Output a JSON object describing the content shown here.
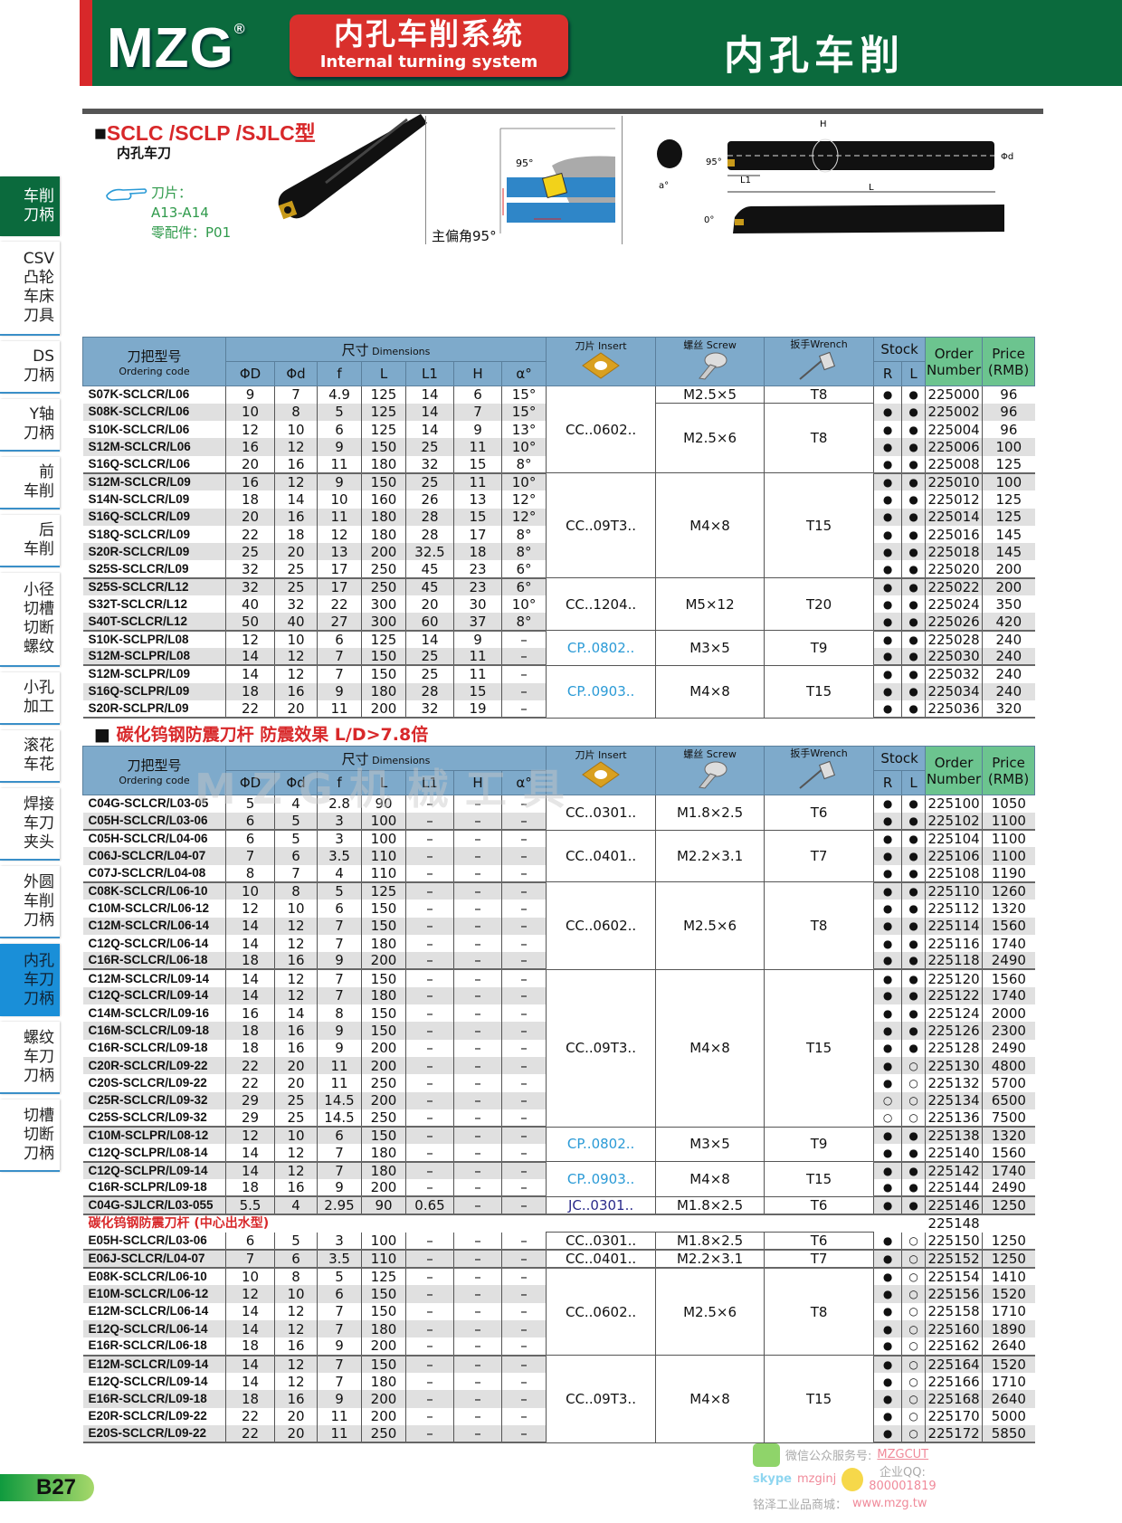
{
  "header": {
    "brand": "MZG",
    "registered": "®",
    "system_cn": "内孔车削系统",
    "system_en": "Internal turning system",
    "title": "内孔车削"
  },
  "sidebar": {
    "items": [
      {
        "lines": [
          "车削",
          "刀柄"
        ],
        "state": "green"
      },
      {
        "lines": [
          "CSV",
          "凸轮",
          "车床",
          "刀具"
        ]
      },
      {
        "lines": [
          "DS",
          "刀柄"
        ]
      },
      {
        "lines": [
          "Y轴",
          "刀柄"
        ]
      },
      {
        "lines": [
          "前",
          "车削"
        ]
      },
      {
        "lines": [
          "后",
          "车削"
        ]
      },
      {
        "lines": [
          "小径",
          "切槽",
          "切断",
          "螺纹"
        ]
      },
      {
        "lines": [
          "小孔",
          "加工"
        ]
      },
      {
        "lines": [
          "滚花",
          "车花"
        ]
      },
      {
        "lines": [
          "焊接",
          "车刀",
          "夹头"
        ]
      },
      {
        "lines": [
          "外圆",
          "车削",
          "刀柄"
        ]
      },
      {
        "lines": [
          "内孔",
          "车刀",
          "刀柄"
        ],
        "state": "active"
      },
      {
        "lines": [
          "螺纹",
          "车刀",
          "刀柄"
        ]
      },
      {
        "lines": [
          "切槽",
          "切断",
          "刀柄"
        ]
      }
    ]
  },
  "intro": {
    "bullet": "■",
    "title": "SCLC  /SCLP  /SJLC型",
    "subtitle": "内孔车刀",
    "insert_label": "刀片：",
    "insert_value": "A13-A14",
    "parts_label": "零配件：P01",
    "angle_label": "主偏角95°",
    "diagram_labels": {
      "angle": "95°",
      "H": "H",
      "d": "Φd",
      "L1": "L1",
      "L": "L",
      "a": "a°",
      "zero": "0°"
    }
  },
  "table_headers": {
    "code_cn": "刀把型号",
    "code_en": "Ordering code",
    "dims_cn": "尺寸",
    "dims_en": " Dimensions",
    "dims": [
      "ΦD",
      "Φd",
      "f",
      "L",
      "L1",
      "H",
      "α°"
    ],
    "insert": "刀片 Insert",
    "screw": "螺丝 Screw",
    "wrench": "扳手Wrench",
    "stock": "Stock",
    "stock_r": "R",
    "stock_l": "L",
    "order": "Order Number",
    "price": "Price (RMB)"
  },
  "icons": {
    "insert": "insert-icon",
    "screw": "screw-icon",
    "wrench": "wrench-icon",
    "hand": "pointing-hand-icon"
  },
  "colors": {
    "banner": "#0b6a3d",
    "red": "#d8282a",
    "header_blue": "#7eaacb",
    "header_green": "#6cc48f",
    "cp_insert": "#2a9ad6",
    "jc_insert": "#2a2a8a"
  },
  "table1": {
    "rows": [
      [
        "S07K-SCLCR/L06",
        "9",
        "7",
        "4.9",
        "125",
        "14",
        "6",
        "15°",
        "●",
        "●",
        "225000",
        "96"
      ],
      [
        "S08K-SCLCR/L06",
        "10",
        "8",
        "5",
        "125",
        "14",
        "7",
        "15°",
        "●",
        "●",
        "225002",
        "96"
      ],
      [
        "S10K-SCLCR/L06",
        "12",
        "10",
        "6",
        "125",
        "14",
        "9",
        "13°",
        "●",
        "●",
        "225004",
        "96"
      ],
      [
        "S12M-SCLCR/L06",
        "16",
        "12",
        "9",
        "150",
        "25",
        "11",
        "10°",
        "●",
        "●",
        "225006",
        "100"
      ],
      [
        "S16Q-SCLCR/L06",
        "20",
        "16",
        "11",
        "180",
        "32",
        "15",
        "8°",
        "●",
        "●",
        "225008",
        "125"
      ],
      [
        "S12M-SCLCR/L09",
        "16",
        "12",
        "9",
        "150",
        "25",
        "11",
        "10°",
        "●",
        "●",
        "225010",
        "100"
      ],
      [
        "S14N-SCLCR/L09",
        "18",
        "14",
        "10",
        "160",
        "26",
        "13",
        "12°",
        "●",
        "●",
        "225012",
        "125"
      ],
      [
        "S16Q-SCLCR/L09",
        "20",
        "16",
        "11",
        "180",
        "28",
        "15",
        "12°",
        "●",
        "●",
        "225014",
        "125"
      ],
      [
        "S18Q-SCLCR/L09",
        "22",
        "18",
        "12",
        "180",
        "28",
        "17",
        "8°",
        "●",
        "●",
        "225016",
        "145"
      ],
      [
        "S20R-SCLCR/L09",
        "25",
        "20",
        "13",
        "200",
        "32.5",
        "18",
        "8°",
        "●",
        "●",
        "225018",
        "145"
      ],
      [
        "S25S-SCLCR/L09",
        "32",
        "25",
        "17",
        "250",
        "45",
        "23",
        "6°",
        "●",
        "●",
        "225020",
        "200"
      ],
      [
        "S25S-SCLCR/L12",
        "32",
        "25",
        "17",
        "250",
        "45",
        "23",
        "6°",
        "●",
        "●",
        "225022",
        "200"
      ],
      [
        "S32T-SCLCR/L12",
        "40",
        "32",
        "22",
        "300",
        "20",
        "30",
        "10°",
        "●",
        "●",
        "225024",
        "350"
      ],
      [
        "S40T-SCLCR/L12",
        "50",
        "40",
        "27",
        "300",
        "60",
        "37",
        "8°",
        "●",
        "●",
        "225026",
        "420"
      ],
      [
        "S10K-SCLPR/L08",
        "12",
        "10",
        "6",
        "125",
        "14",
        "9",
        "–",
        "●",
        "●",
        "225028",
        "240"
      ],
      [
        "S12M-SCLPR/L08",
        "14",
        "12",
        "7",
        "150",
        "25",
        "11",
        "–",
        "●",
        "●",
        "225030",
        "240"
      ],
      [
        "S12M-SCLPR/L09",
        "14",
        "12",
        "7",
        "150",
        "25",
        "11",
        "–",
        "●",
        "●",
        "225032",
        "240"
      ],
      [
        "S16Q-SCLPR/L09",
        "18",
        "16",
        "9",
        "180",
        "28",
        "15",
        "–",
        "●",
        "●",
        "225034",
        "240"
      ],
      [
        "S20R-SCLPR/L09",
        "22",
        "20",
        "11",
        "200",
        "32",
        "19",
        "–",
        "●",
        "●",
        "225036",
        "320"
      ]
    ],
    "insert": [
      {
        "v": "CC..0602..",
        "n": 5
      },
      {
        "v": "CC..09T3..",
        "n": 6
      },
      {
        "v": "CC..1204..",
        "n": 3
      },
      {
        "v": "CP..0802..",
        "n": 2,
        "c": "cp"
      },
      {
        "v": "CP..0903..",
        "n": 3,
        "c": "cp"
      }
    ],
    "screw": [
      {
        "v": "M2.5×5",
        "n": 1
      },
      {
        "v": "M2.5×6",
        "n": 4
      },
      {
        "v": "M4×8",
        "n": 6
      },
      {
        "v": "M5×12",
        "n": 3
      },
      {
        "v": "M3×5",
        "n": 2
      },
      {
        "v": "M4×8",
        "n": 3
      }
    ],
    "wrench": [
      {
        "v": "T8",
        "n": 1
      },
      {
        "v": "T8",
        "n": 4
      },
      {
        "v": "T15",
        "n": 6
      },
      {
        "v": "T20",
        "n": 3
      },
      {
        "v": "T9",
        "n": 2
      },
      {
        "v": "T15",
        "n": 3
      }
    ]
  },
  "section2": {
    "bullet": "■",
    "title": "碳化钨钢防震刀杆  防震效果 L/D>7.8倍",
    "watermark": "MZG机械工具"
  },
  "table2": {
    "rows": [
      [
        "C04G-SCLCR/L03-05",
        "5",
        "4",
        "2.8",
        "90",
        "–",
        "–",
        "–",
        "●",
        "●",
        "225100",
        "1050"
      ],
      [
        "C05H-SCLCR/L03-06",
        "6",
        "5",
        "3",
        "100",
        "–",
        "–",
        "–",
        "●",
        "●",
        "225102",
        "1100"
      ],
      [
        "C05H-SCLCR/L04-06",
        "6",
        "5",
        "3",
        "100",
        "–",
        "–",
        "–",
        "●",
        "●",
        "225104",
        "1100"
      ],
      [
        "C06J-SCLCR/L04-07",
        "7",
        "6",
        "3.5",
        "110",
        "–",
        "–",
        "–",
        "●",
        "●",
        "225106",
        "1100"
      ],
      [
        "C07J-SCLCR/L04-08",
        "8",
        "7",
        "4",
        "110",
        "–",
        "–",
        "–",
        "●",
        "●",
        "225108",
        "1190"
      ],
      [
        "C08K-SCLCR/L06-10",
        "10",
        "8",
        "5",
        "125",
        "–",
        "–",
        "–",
        "●",
        "●",
        "225110",
        "1260"
      ],
      [
        "C10M-SCLCR/L06-12",
        "12",
        "10",
        "6",
        "150",
        "–",
        "–",
        "–",
        "●",
        "●",
        "225112",
        "1320"
      ],
      [
        "C12M-SCLCR/L06-14",
        "14",
        "12",
        "7",
        "150",
        "–",
        "–",
        "–",
        "●",
        "●",
        "225114",
        "1560"
      ],
      [
        "C12Q-SCLCR/L06-14",
        "14",
        "12",
        "7",
        "180",
        "–",
        "–",
        "–",
        "●",
        "●",
        "225116",
        "1740"
      ],
      [
        "C16R-SCLCR/L06-18",
        "18",
        "16",
        "9",
        "200",
        "–",
        "–",
        "–",
        "●",
        "●",
        "225118",
        "2490"
      ],
      [
        "C12M-SCLCR/L09-14",
        "14",
        "12",
        "7",
        "150",
        "–",
        "–",
        "–",
        "●",
        "●",
        "225120",
        "1560"
      ],
      [
        "C12Q-SCLCR/L09-14",
        "14",
        "12",
        "7",
        "180",
        "–",
        "–",
        "–",
        "●",
        "●",
        "225122",
        "1740"
      ],
      [
        "C14M-SCLCR/L09-16",
        "16",
        "14",
        "8",
        "150",
        "–",
        "–",
        "–",
        "●",
        "●",
        "225124",
        "2000"
      ],
      [
        "C16M-SCLCR/L09-18",
        "18",
        "16",
        "9",
        "150",
        "–",
        "–",
        "–",
        "●",
        "●",
        "225126",
        "2300"
      ],
      [
        "C16R-SCLCR/L09-18",
        "18",
        "16",
        "9",
        "200",
        "–",
        "–",
        "–",
        "●",
        "●",
        "225128",
        "2490"
      ],
      [
        "C20R-SCLCR/L09-22",
        "22",
        "20",
        "11",
        "200",
        "–",
        "–",
        "–",
        "●",
        "○",
        "225130",
        "4800"
      ],
      [
        "C20S-SCLCR/L09-22",
        "22",
        "20",
        "11",
        "250",
        "–",
        "–",
        "–",
        "●",
        "○",
        "225132",
        "5700"
      ],
      [
        "C25R-SCLCR/L09-32",
        "29",
        "25",
        "14.5",
        "200",
        "–",
        "–",
        "–",
        "○",
        "○",
        "225134",
        "6500"
      ],
      [
        "C25S-SCLCR/L09-32",
        "29",
        "25",
        "14.5",
        "250",
        "–",
        "–",
        "–",
        "○",
        "○",
        "225136",
        "7500"
      ],
      [
        "C10M-SCLPR/L08-12",
        "12",
        "10",
        "6",
        "150",
        "–",
        "–",
        "–",
        "●",
        "●",
        "225138",
        "1320"
      ],
      [
        "C12Q-SCLPR/L08-14",
        "14",
        "12",
        "7",
        "180",
        "–",
        "–",
        "–",
        "●",
        "●",
        "225140",
        "1560"
      ],
      [
        "C12Q-SCLPR/L09-14",
        "14",
        "12",
        "7",
        "180",
        "–",
        "–",
        "–",
        "●",
        "●",
        "225142",
        "1740"
      ],
      [
        "C16R-SCLPR/L09-18",
        "18",
        "16",
        "9",
        "200",
        "–",
        "–",
        "–",
        "●",
        "●",
        "225144",
        "2490"
      ],
      [
        "C04G-SJLCR/L03-055",
        "5.5",
        "4",
        "2.95",
        "90",
        "0.65",
        "–",
        "–",
        "●",
        "●",
        "225146",
        "1250"
      ],
      {
        "subheading": "碳化钨钢防震刀杆 (中心出水型)",
        "order": "225148"
      },
      [
        "E05H-SCLCR/L03-06",
        "6",
        "5",
        "3",
        "100",
        "–",
        "–",
        "–",
        "●",
        "○",
        "225150",
        "1250"
      ],
      [
        "E06J-SCLCR/L04-07",
        "7",
        "6",
        "3.5",
        "110",
        "–",
        "–",
        "–",
        "●",
        "○",
        "225152",
        "1250"
      ],
      [
        "E08K-SCLCR/L06-10",
        "10",
        "8",
        "5",
        "125",
        "–",
        "–",
        "–",
        "●",
        "○",
        "225154",
        "1410"
      ],
      [
        "E10M-SCLCR/L06-12",
        "12",
        "10",
        "6",
        "150",
        "–",
        "–",
        "–",
        "●",
        "○",
        "225156",
        "1520"
      ],
      [
        "E12M-SCLCR/L06-14",
        "14",
        "12",
        "7",
        "150",
        "–",
        "–",
        "–",
        "●",
        "○",
        "225158",
        "1710"
      ],
      [
        "E12Q-SCLCR/L06-14",
        "14",
        "12",
        "7",
        "180",
        "–",
        "–",
        "–",
        "●",
        "○",
        "225160",
        "1890"
      ],
      [
        "E16R-SCLCR/L06-18",
        "18",
        "16",
        "9",
        "200",
        "–",
        "–",
        "–",
        "●",
        "○",
        "225162",
        "2640"
      ],
      [
        "E12M-SCLCR/L09-14",
        "14",
        "12",
        "7",
        "150",
        "–",
        "–",
        "–",
        "●",
        "○",
        "225164",
        "1520"
      ],
      [
        "E12Q-SCLCR/L09-14",
        "14",
        "12",
        "7",
        "180",
        "–",
        "–",
        "–",
        "●",
        "○",
        "225166",
        "1710"
      ],
      [
        "E16R-SCLCR/L09-18",
        "18",
        "16",
        "9",
        "200",
        "–",
        "–",
        "–",
        "●",
        "○",
        "225168",
        "2640"
      ],
      [
        "E20R-SCLCR/L09-22",
        "22",
        "20",
        "11",
        "200",
        "–",
        "–",
        "–",
        "●",
        "○",
        "225170",
        "5000"
      ],
      [
        "E20S-SCLCR/L09-22",
        "22",
        "20",
        "11",
        "250",
        "–",
        "–",
        "–",
        "●",
        "○",
        "225172",
        "5850"
      ]
    ],
    "insert": [
      {
        "v": "CC..0301..",
        "n": 2
      },
      {
        "v": "CC..0401..",
        "n": 3
      },
      {
        "v": "CC..0602..",
        "n": 5
      },
      {
        "v": "CC..09T3..",
        "n": 9
      },
      {
        "v": "CP..0802..",
        "n": 2,
        "c": "cp"
      },
      {
        "v": "CP..0903..",
        "n": 2,
        "c": "cp"
      },
      {
        "v": "JC..0301..",
        "n": 1,
        "c": "jc"
      },
      {
        "v": "CC..0301..",
        "n": 1
      },
      {
        "v": "CC..0401..",
        "n": 1
      },
      {
        "v": "CC..0602..",
        "n": 5
      },
      {
        "v": "CC..09T3..",
        "n": 5
      }
    ],
    "screw": [
      {
        "v": "M1.8×2.5",
        "n": 2
      },
      {
        "v": "M2.2×3.1",
        "n": 3
      },
      {
        "v": "M2.5×6",
        "n": 5
      },
      {
        "v": "M4×8",
        "n": 9
      },
      {
        "v": "M3×5",
        "n": 2
      },
      {
        "v": "M4×8",
        "n": 2
      },
      {
        "v": "M1.8×2.5",
        "n": 1
      },
      {
        "v": "M1.8×2.5",
        "n": 1
      },
      {
        "v": "M2.2×3.1",
        "n": 1
      },
      {
        "v": "M2.5×6",
        "n": 5
      },
      {
        "v": "M4×8",
        "n": 5
      }
    ],
    "wrench": [
      {
        "v": "T6",
        "n": 2
      },
      {
        "v": "T7",
        "n": 3
      },
      {
        "v": "T8",
        "n": 5
      },
      {
        "v": "T15",
        "n": 9
      },
      {
        "v": "T9",
        "n": 2
      },
      {
        "v": "T15",
        "n": 2
      },
      {
        "v": "T6",
        "n": 1
      },
      {
        "v": "T6",
        "n": 1
      },
      {
        "v": "T7",
        "n": 1
      },
      {
        "v": "T8",
        "n": 5
      },
      {
        "v": "T15",
        "n": 5
      }
    ]
  },
  "page_label": "B27",
  "footer": {
    "wechat_label": "微信公众服务号:",
    "wechat_id": "MZGCUT",
    "skype_label": "skype",
    "skype_id": "mzginj",
    "qq_label": "企业QQ:",
    "qq_id": "800001819",
    "mall_label": "铭泽工业品商城：",
    "mall_url": "www.mzg.tw"
  }
}
